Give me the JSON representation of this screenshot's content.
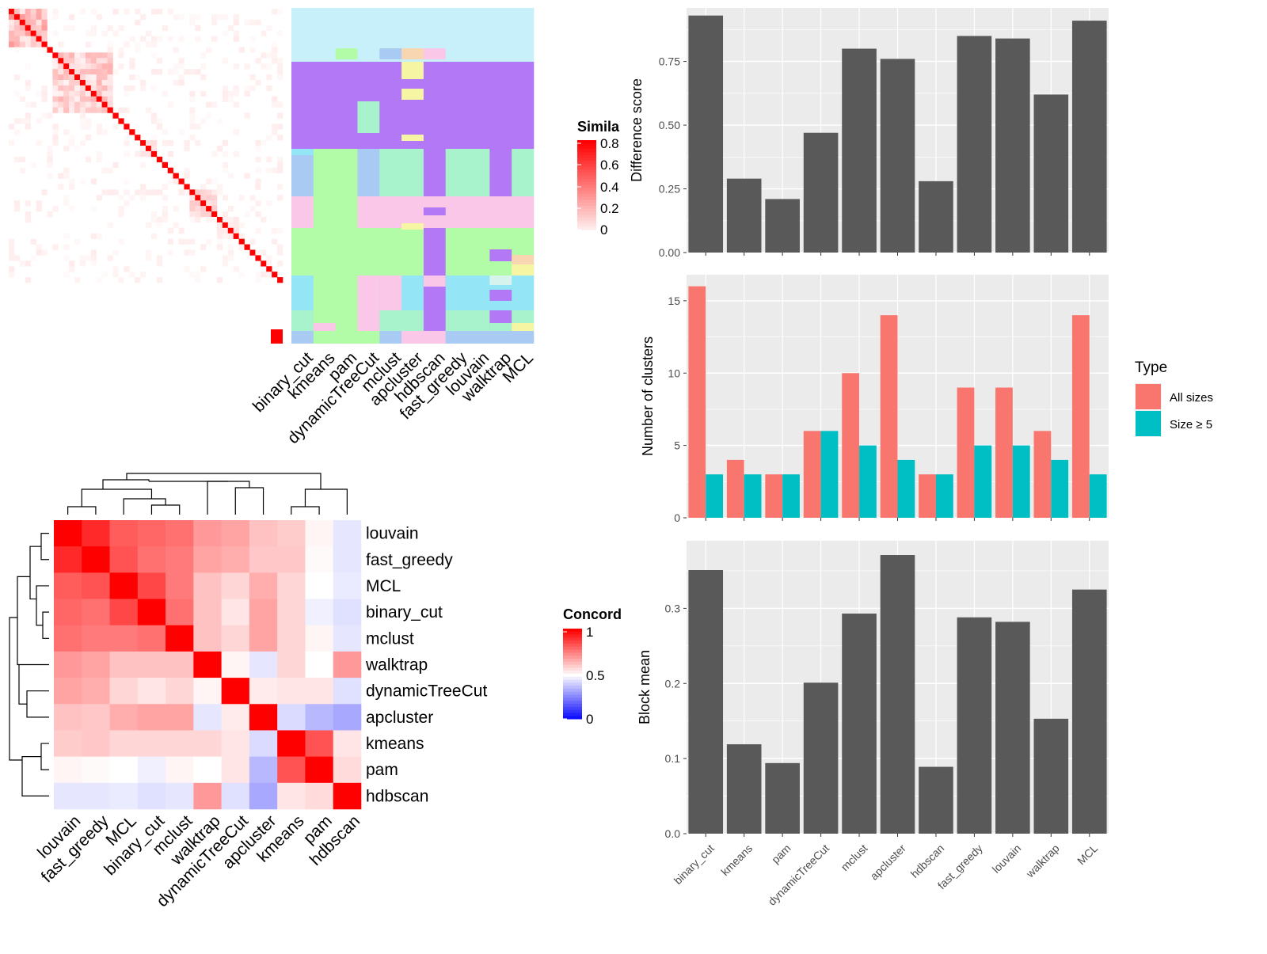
{
  "methods_order": [
    "binary_cut",
    "kmeans",
    "pam",
    "dynamicTreeCut",
    "mclust",
    "apcluster",
    "hdbscan",
    "fast_greedy",
    "louvain",
    "walktrap",
    "MCL"
  ],
  "concordance_order": [
    "louvain",
    "fast_greedy",
    "MCL",
    "binary_cut",
    "mclust",
    "walktrap",
    "dynamicTreeCut",
    "apcluster",
    "kmeans",
    "pam",
    "hdbscan"
  ],
  "similarity_heatmap": {
    "legend_title": "Simila",
    "legend_ticks": [
      "0.8",
      "0.6",
      "0.4",
      "0.2",
      "0"
    ]
  },
  "concordance_heatmap": {
    "legend_title": "Concord",
    "legend_ticks": [
      "1",
      "0.5",
      "0"
    ]
  },
  "colors": {
    "bar": "#595959",
    "panel_bg": "#ebebeb",
    "grid": "#ffffff",
    "all_sizes": "#F8766D",
    "size_ge_5": "#00BFC4",
    "heat_high": "#FF0000",
    "heat_low": "#FFFFFF",
    "conc_low": "#0000FF",
    "conc_mid": "#FFFFFF"
  },
  "legend": {
    "title": "Type",
    "items": [
      "All sizes",
      "Size ≥ 5"
    ]
  },
  "chart_data": [
    {
      "type": "bar",
      "ylabel": "Difference score",
      "categories": [
        "binary_cut",
        "kmeans",
        "pam",
        "dynamicTreeCut",
        "mclust",
        "apcluster",
        "hdbscan",
        "fast_greedy",
        "louvain",
        "walktrap",
        "MCL"
      ],
      "values": [
        0.93,
        0.29,
        0.21,
        0.47,
        0.8,
        0.76,
        0.28,
        0.85,
        0.84,
        0.62,
        0.91
      ],
      "ylim": [
        0,
        0.96
      ],
      "yticks": [
        "0.00",
        "0.25",
        "0.50",
        "0.75"
      ]
    },
    {
      "type": "bar",
      "ylabel": "Number of clusters",
      "categories": [
        "binary_cut",
        "kmeans",
        "pam",
        "dynamicTreeCut",
        "mclust",
        "apcluster",
        "hdbscan",
        "fast_greedy",
        "louvain",
        "walktrap",
        "MCL"
      ],
      "series": [
        {
          "name": "All sizes",
          "values": [
            16,
            4,
            3,
            6,
            10,
            14,
            3,
            9,
            9,
            6,
            14
          ]
        },
        {
          "name": "Size ≥ 5",
          "values": [
            3,
            3,
            3,
            6,
            5,
            4,
            3,
            5,
            5,
            4,
            3
          ]
        }
      ],
      "ylim": [
        0,
        16.8
      ],
      "yticks": [
        "0",
        "5",
        "10",
        "15"
      ]
    },
    {
      "type": "bar",
      "ylabel": "Block mean",
      "categories": [
        "binary_cut",
        "kmeans",
        "pam",
        "dynamicTreeCut",
        "mclust",
        "apcluster",
        "hdbscan",
        "fast_greedy",
        "louvain",
        "walktrap",
        "MCL"
      ],
      "values": [
        0.351,
        0.119,
        0.094,
        0.201,
        0.293,
        0.371,
        0.089,
        0.288,
        0.282,
        0.153,
        0.325
      ],
      "ylim": [
        0,
        0.39
      ],
      "yticks": [
        "0.0",
        "0.1",
        "0.2",
        "0.3"
      ]
    },
    {
      "type": "heatmap",
      "title": "",
      "legend_title": "Concord",
      "rows": [
        "louvain",
        "fast_greedy",
        "MCL",
        "binary_cut",
        "mclust",
        "walktrap",
        "dynamicTreeCut",
        "apcluster",
        "kmeans",
        "pam",
        "hdbscan"
      ],
      "columns": [
        "louvain",
        "fast_greedy",
        "MCL",
        "binary_cut",
        "mclust",
        "walktrap",
        "dynamicTreeCut",
        "apcluster",
        "kmeans",
        "pam",
        "hdbscan"
      ],
      "values": [
        [
          1.0,
          0.92,
          0.82,
          0.8,
          0.78,
          0.7,
          0.68,
          0.62,
          0.6,
          0.52,
          0.45
        ],
        [
          0.92,
          1.0,
          0.84,
          0.78,
          0.76,
          0.68,
          0.66,
          0.61,
          0.61,
          0.51,
          0.45
        ],
        [
          0.82,
          0.84,
          1.0,
          0.86,
          0.76,
          0.62,
          0.58,
          0.66,
          0.58,
          0.5,
          0.46
        ],
        [
          0.8,
          0.78,
          0.86,
          1.0,
          0.78,
          0.62,
          0.55,
          0.68,
          0.58,
          0.47,
          0.44
        ],
        [
          0.78,
          0.76,
          0.76,
          0.78,
          1.0,
          0.62,
          0.58,
          0.68,
          0.58,
          0.52,
          0.45
        ],
        [
          0.7,
          0.68,
          0.62,
          0.62,
          0.62,
          1.0,
          0.52,
          0.45,
          0.58,
          0.5,
          0.7
        ],
        [
          0.68,
          0.66,
          0.58,
          0.55,
          0.58,
          0.52,
          1.0,
          0.54,
          0.55,
          0.55,
          0.44
        ],
        [
          0.62,
          0.61,
          0.66,
          0.68,
          0.68,
          0.45,
          0.54,
          1.0,
          0.43,
          0.36,
          0.33
        ],
        [
          0.6,
          0.61,
          0.58,
          0.58,
          0.58,
          0.58,
          0.55,
          0.43,
          1.0,
          0.84,
          0.55
        ],
        [
          0.52,
          0.51,
          0.5,
          0.47,
          0.52,
          0.5,
          0.55,
          0.36,
          0.84,
          1.0,
          0.57
        ],
        [
          0.45,
          0.45,
          0.46,
          0.44,
          0.45,
          0.7,
          0.44,
          0.33,
          0.55,
          0.57,
          1.0
        ]
      ]
    }
  ]
}
